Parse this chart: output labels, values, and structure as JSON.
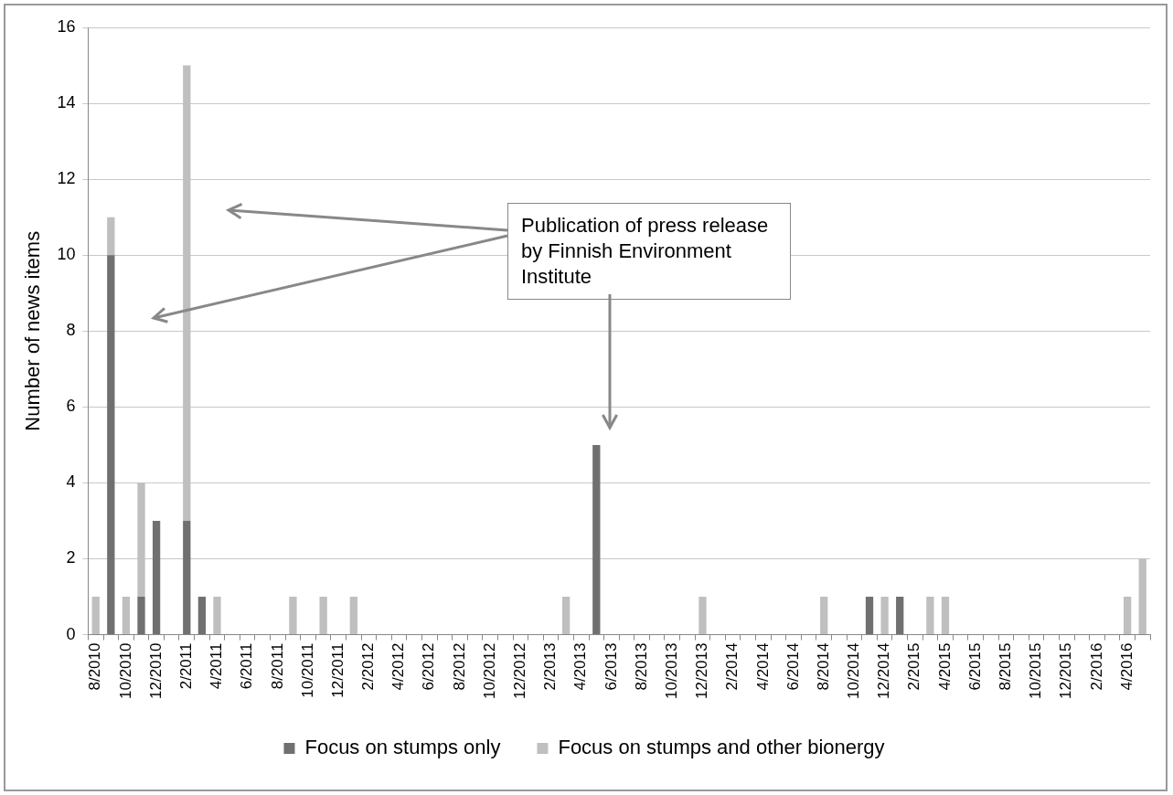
{
  "chart_data": {
    "type": "bar",
    "stacked": true,
    "ylabel": "Number of news items",
    "categories": [
      "8/2010",
      null,
      "10/2010",
      null,
      "12/2010",
      null,
      "2/2011",
      null,
      "4/2011",
      null,
      "6/2011",
      null,
      "8/2011",
      null,
      "10/2011",
      null,
      "12/2011",
      null,
      "2/2012",
      null,
      "4/2012",
      null,
      "6/2012",
      null,
      "8/2012",
      null,
      "10/2012",
      null,
      "12/2012",
      null,
      "2/2013",
      null,
      "4/2013",
      null,
      "6/2013",
      null,
      "8/2013",
      null,
      "10/2013",
      null,
      "12/2013",
      null,
      "2/2014",
      null,
      "4/2014",
      null,
      "6/2014",
      null,
      "8/2014",
      null,
      "10/2014",
      null,
      "12/2014",
      null,
      "2/2015",
      null,
      "4/2015",
      null,
      "6/2015",
      null,
      "8/2015",
      null,
      "10/2015",
      null,
      "12/2015",
      null,
      "2/2016",
      null,
      "4/2016",
      null
    ],
    "series": [
      {
        "name": "Focus on stumps only",
        "color": "#707070",
        "values": [
          0,
          10,
          0,
          1,
          3,
          0,
          3,
          1,
          0,
          0,
          0,
          0,
          0,
          0,
          0,
          0,
          0,
          0,
          0,
          0,
          0,
          0,
          0,
          0,
          0,
          0,
          0,
          0,
          0,
          0,
          0,
          0,
          0,
          5,
          0,
          0,
          0,
          0,
          0,
          0,
          0,
          0,
          0,
          0,
          0,
          0,
          0,
          0,
          0,
          0,
          0,
          1,
          0,
          1,
          0,
          0,
          0,
          0,
          0,
          0,
          0,
          0,
          0,
          0,
          0,
          0,
          0,
          0,
          0,
          0
        ]
      },
      {
        "name": "Focus on stumps and other bionergy",
        "color": "#bfbfbf",
        "values": [
          1,
          1,
          1,
          3,
          0,
          0,
          12,
          0,
          1,
          0,
          0,
          0,
          0,
          1,
          0,
          1,
          0,
          1,
          0,
          0,
          0,
          0,
          0,
          0,
          0,
          0,
          0,
          0,
          0,
          0,
          0,
          1,
          0,
          0,
          0,
          0,
          0,
          0,
          0,
          0,
          1,
          0,
          0,
          0,
          0,
          0,
          0,
          0,
          1,
          0,
          0,
          0,
          1,
          0,
          0,
          1,
          1,
          0,
          0,
          0,
          0,
          0,
          0,
          0,
          0,
          0,
          0,
          0,
          1,
          2
        ]
      }
    ],
    "ylim": [
      0,
      16
    ],
    "yticks": [
      0,
      2,
      4,
      6,
      8,
      10,
      12,
      14,
      16
    ],
    "grid": "y",
    "legend": "bottom",
    "annotations": [
      "Publication of press release by Finnish Environment Institute"
    ]
  }
}
